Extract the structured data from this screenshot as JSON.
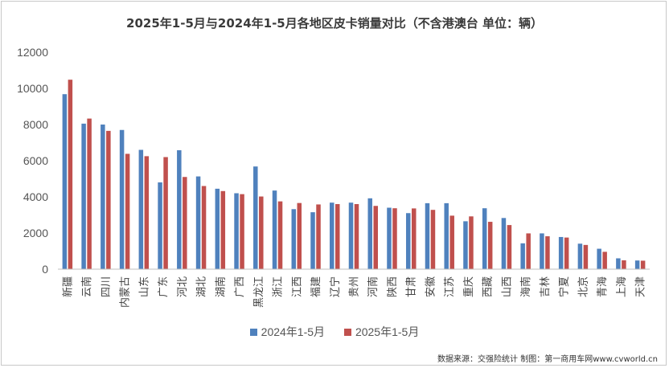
{
  "chart_data": {
    "type": "bar",
    "title": "2025年1-5月与2024年1-5月各地区皮卡销量对比（不含港澳台 单位：辆）",
    "categories": [
      "新疆",
      "云南",
      "四川",
      "内蒙古",
      "山东",
      "广东",
      "河北",
      "湖北",
      "湖南",
      "广西",
      "黑龙江",
      "浙江",
      "江西",
      "福建",
      "辽宁",
      "贵州",
      "河南",
      "陕西",
      "甘肃",
      "安徽",
      "江苏",
      "重庆",
      "西藏",
      "山西",
      "海南",
      "吉林",
      "宁夏",
      "北京",
      "青海",
      "上海",
      "天津"
    ],
    "series": [
      {
        "name": "2024年1-5月",
        "color": "#4f81bd",
        "values": [
          9680,
          8050,
          8000,
          7700,
          6600,
          4800,
          6580,
          5130,
          4450,
          4200,
          5680,
          4350,
          3320,
          3150,
          3680,
          3680,
          3920,
          3400,
          3100,
          3650,
          3650,
          2650,
          3370,
          2830,
          1430,
          1980,
          1780,
          1410,
          1130,
          600,
          480
        ]
      },
      {
        "name": "2025年1-5月",
        "color": "#c0504d",
        "values": [
          10480,
          8330,
          7650,
          6380,
          6250,
          6200,
          5100,
          4600,
          4320,
          4150,
          4020,
          3750,
          3660,
          3580,
          3600,
          3600,
          3500,
          3370,
          3360,
          3280,
          2960,
          2920,
          2620,
          2440,
          1980,
          1820,
          1750,
          1340,
          960,
          490,
          470
        ]
      }
    ],
    "ylim": [
      0,
      12000
    ],
    "yticks": [
      0,
      2000,
      4000,
      6000,
      8000,
      10000,
      12000
    ],
    "legend_position": "bottom",
    "grid": false
  },
  "source_note": "数据来源：交强险统计 制图：第一商用车网www.cvworld.cn"
}
